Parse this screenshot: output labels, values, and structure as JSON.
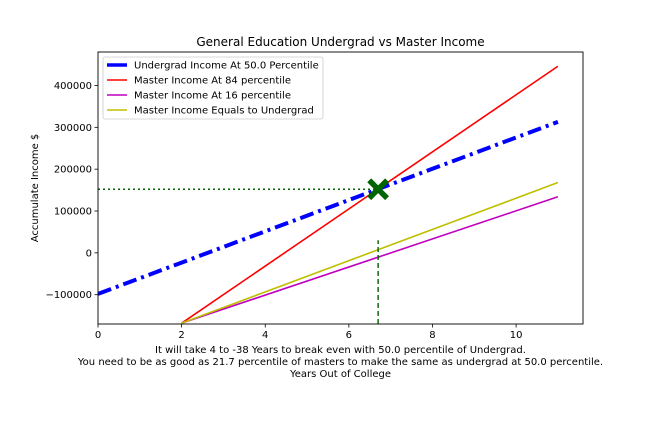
{
  "chart_data": {
    "type": "line",
    "title": "General Education Undergrad vs Master Income",
    "ylabel": "Accumulate Income $",
    "xlabel_lines": [
      "It will take 4 to -38 Years to break even with 50.0 percentile of Undergrad.",
      "You need to be as good as 21.7 percentile of masters to make the same as undergrad at 50.0 percentile.",
      "Years Out of College"
    ],
    "xlim": [
      0,
      11.6
    ],
    "ylim": [
      -170000,
      480000
    ],
    "xticks": [
      0,
      2,
      4,
      6,
      8,
      10
    ],
    "yticks": [
      -100000,
      0,
      100000,
      200000,
      300000,
      400000
    ],
    "ytick_labels": [
      "−100000",
      "0",
      "100000",
      "200000",
      "300000",
      "400000"
    ],
    "legend_position": "upper-left",
    "series": [
      {
        "name": "Undergrad Income At 50.0 Percentile",
        "color": "#0000ff",
        "style": "dashdot-thick",
        "x": [
          0,
          11
        ],
        "y": [
          -98000,
          313000
        ]
      },
      {
        "name": "Master Income At 84 percentile",
        "color": "#ff0000",
        "style": "solid",
        "x": [
          2,
          11
        ],
        "y": [
          -168000,
          446000
        ]
      },
      {
        "name": "Master Income At 16 percentile",
        "color": "#bf00bf",
        "style": "solid",
        "x": [
          2,
          11
        ],
        "y": [
          -168000,
          134000
        ]
      },
      {
        "name": "Master Income Equals to Undergrad",
        "color": "#bfbf00",
        "style": "solid",
        "x": [
          2,
          11
        ],
        "y": [
          -168000,
          168000
        ]
      }
    ],
    "annotations": {
      "break_even_point": {
        "x": 6.7,
        "y": 152000,
        "color": "#006400",
        "marker": "X"
      },
      "horizontal_guide": {
        "y": 152000,
        "x_from": 0,
        "x_to": 6.7,
        "color": "#006400",
        "style": "dotted"
      },
      "vertical_guide": {
        "x": 6.7,
        "y_from": -170000,
        "y_to": 30000,
        "color": "#006400",
        "style": "dashed"
      }
    }
  }
}
